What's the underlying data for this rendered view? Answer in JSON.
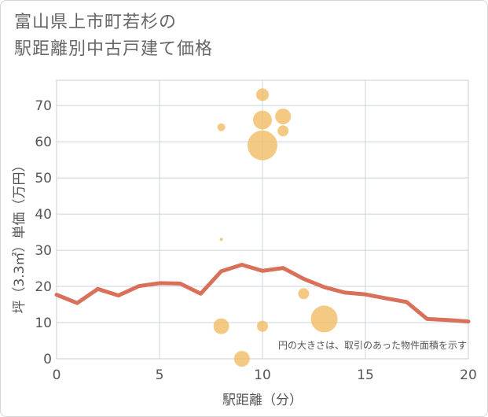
{
  "title_line1": "富山県上市町若杉の",
  "title_line2": "駅距離別中古戸建て価格",
  "chart_data": {
    "type": "scatter",
    "xlabel": "駅距離（分）",
    "ylabel": "坪（3.3㎡）単価（万円）",
    "xlim": [
      0,
      20
    ],
    "ylim": [
      0,
      77
    ],
    "xticks": [
      0,
      5,
      10,
      15,
      20
    ],
    "yticks": [
      0,
      10,
      20,
      30,
      40,
      50,
      60,
      70
    ],
    "grid": true,
    "note": "円の大きさは、取引のあった物件面積を示す",
    "bubble_color": "#f0bc65",
    "line_color": "#d9705a",
    "bubbles": [
      {
        "x": 8,
        "y": 33,
        "r": 2
      },
      {
        "x": 8,
        "y": 64,
        "r": 5
      },
      {
        "x": 8,
        "y": 9,
        "r": 10
      },
      {
        "x": 9,
        "y": 0,
        "r": 10
      },
      {
        "x": 10,
        "y": 73,
        "r": 8
      },
      {
        "x": 10,
        "y": 66,
        "r": 12
      },
      {
        "x": 10,
        "y": 59,
        "r": 19
      },
      {
        "x": 10,
        "y": 9,
        "r": 7
      },
      {
        "x": 11,
        "y": 67,
        "r": 10
      },
      {
        "x": 11,
        "y": 63,
        "r": 7
      },
      {
        "x": 12,
        "y": 18,
        "r": 7
      },
      {
        "x": 13,
        "y": 11,
        "r": 17
      }
    ],
    "line": {
      "x": [
        0,
        1,
        2,
        3,
        4,
        5,
        6,
        7,
        8,
        9,
        10,
        11,
        12,
        13,
        14,
        15,
        16,
        17,
        18,
        19,
        20
      ],
      "y": [
        17.7,
        15.4,
        19.3,
        17.5,
        20.1,
        20.9,
        20.8,
        18.0,
        24.2,
        26.0,
        24.3,
        25.1,
        22.1,
        19.8,
        18.3,
        17.8,
        16.7,
        15.7,
        11.0,
        10.7,
        10.3
      ]
    }
  }
}
